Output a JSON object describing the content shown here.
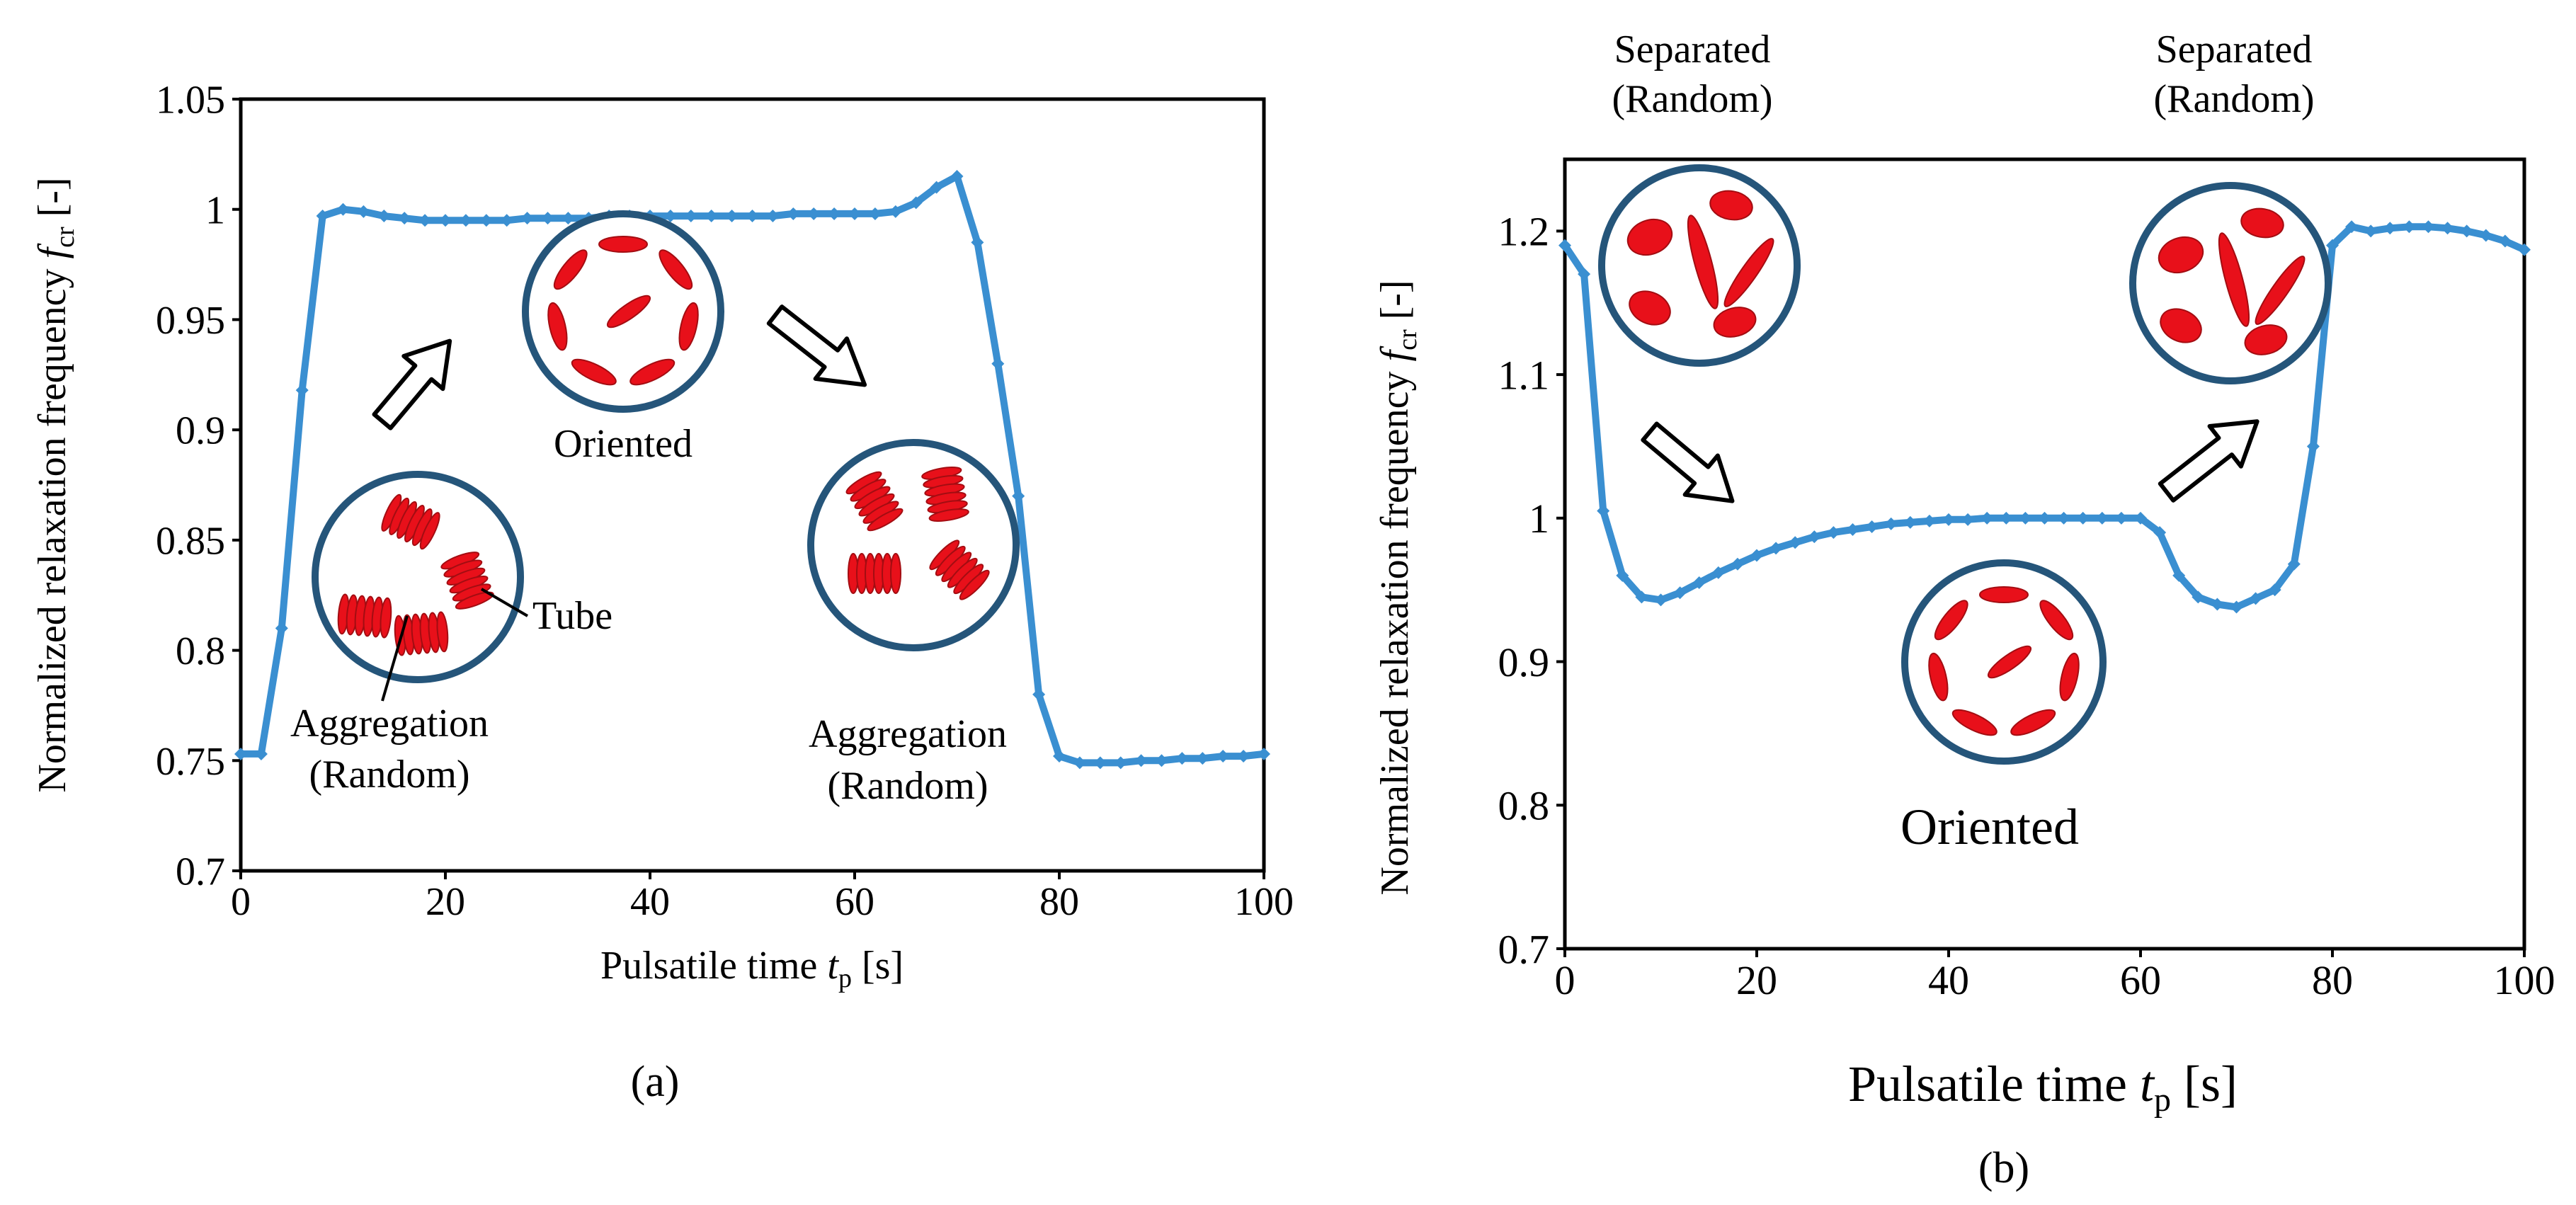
{
  "colors": {
    "line": "#3a8fd1",
    "cell_fill": "#e8101a",
    "cell_edge": "#a30d12",
    "tube_edge": "#25557a",
    "axis": "#000000"
  },
  "chart_data": [
    {
      "type": "line",
      "panel_label": "(a)",
      "ylabel_main": "Normalized relaxation frequency ",
      "ylabel_symbol": "f",
      "ylabel_subscript": "cr",
      "ylabel_unit": " [-]",
      "xlabel_main": "Pulsatile time ",
      "xlabel_symbol": "t",
      "xlabel_subscript": "p",
      "xlabel_unit": " [s]",
      "xlim": [
        0,
        100
      ],
      "ylim": [
        0.7,
        1.05
      ],
      "xticks": [
        "0",
        "20",
        "40",
        "60",
        "80",
        "100"
      ],
      "yticks": [
        "0.7",
        "0.75",
        "0.8",
        "0.85",
        "0.9",
        "0.95",
        "1",
        "1.05"
      ],
      "x": [
        0,
        2,
        4,
        6,
        8,
        10,
        12,
        14,
        16,
        18,
        20,
        22,
        24,
        26,
        28,
        30,
        32,
        34,
        36,
        38,
        40,
        42,
        44,
        46,
        48,
        50,
        52,
        54,
        56,
        58,
        60,
        62,
        64,
        66,
        68,
        70,
        72,
        74,
        76,
        78,
        80,
        82,
        84,
        86,
        88,
        90,
        92,
        94,
        96,
        98,
        100
      ],
      "y": [
        0.753,
        0.753,
        0.81,
        0.918,
        0.997,
        1.0,
        0.999,
        0.997,
        0.996,
        0.995,
        0.995,
        0.995,
        0.995,
        0.995,
        0.996,
        0.996,
        0.996,
        0.996,
        0.997,
        0.997,
        0.997,
        0.997,
        0.997,
        0.997,
        0.997,
        0.997,
        0.997,
        0.998,
        0.998,
        0.998,
        0.998,
        0.998,
        0.999,
        1.003,
        1.01,
        1.015,
        0.985,
        0.93,
        0.87,
        0.78,
        0.752,
        0.749,
        0.749,
        0.749,
        0.75,
        0.75,
        0.751,
        0.751,
        0.752,
        0.752,
        0.753
      ],
      "annotations": {
        "oriented": "Oriented",
        "tube": "Tube",
        "agg1_line1": "Aggregation",
        "agg1_line2": "(Random)",
        "agg2_line1": "Aggregation",
        "agg2_line2": "(Random)"
      }
    },
    {
      "type": "line",
      "panel_label": "(b)",
      "ylabel_main": "Normalized relaxation frequency ",
      "ylabel_symbol": "f",
      "ylabel_subscript": "cr",
      "ylabel_unit": " [-]",
      "xlabel_main": "Pulsatile time ",
      "xlabel_symbol": "t",
      "xlabel_subscript": "p",
      "xlabel_unit": " [s]",
      "xlim": [
        0,
        100
      ],
      "ylim": [
        0.7,
        1.25
      ],
      "xticks": [
        "0",
        "20",
        "40",
        "60",
        "80",
        "100"
      ],
      "yticks": [
        "0.7",
        "0.8",
        "0.9",
        "1",
        "1.1",
        "1.2"
      ],
      "x": [
        0,
        2,
        4,
        6,
        8,
        10,
        12,
        14,
        16,
        18,
        20,
        22,
        24,
        26,
        28,
        30,
        32,
        34,
        36,
        38,
        40,
        42,
        44,
        46,
        48,
        50,
        52,
        54,
        56,
        58,
        60,
        62,
        64,
        66,
        68,
        70,
        72,
        74,
        76,
        78,
        80,
        82,
        84,
        86,
        88,
        90,
        92,
        94,
        96,
        98,
        100
      ],
      "y": [
        1.19,
        1.17,
        1.005,
        0.96,
        0.945,
        0.943,
        0.948,
        0.955,
        0.962,
        0.968,
        0.974,
        0.979,
        0.983,
        0.987,
        0.99,
        0.992,
        0.994,
        0.996,
        0.997,
        0.998,
        0.999,
        0.999,
        1.0,
        1.0,
        1.0,
        1.0,
        1.0,
        1.0,
        1.0,
        1.0,
        1.0,
        0.99,
        0.96,
        0.945,
        0.94,
        0.938,
        0.944,
        0.95,
        0.968,
        1.05,
        1.19,
        1.203,
        1.2,
        1.202,
        1.203,
        1.203,
        1.202,
        1.2,
        1.197,
        1.193,
        1.187
      ],
      "annotations": {
        "sep1_line1": "Separated",
        "sep1_line2": "(Random)",
        "sep2_line1": "Separated",
        "sep2_line2": "(Random)",
        "oriented": "Oriented"
      }
    }
  ]
}
